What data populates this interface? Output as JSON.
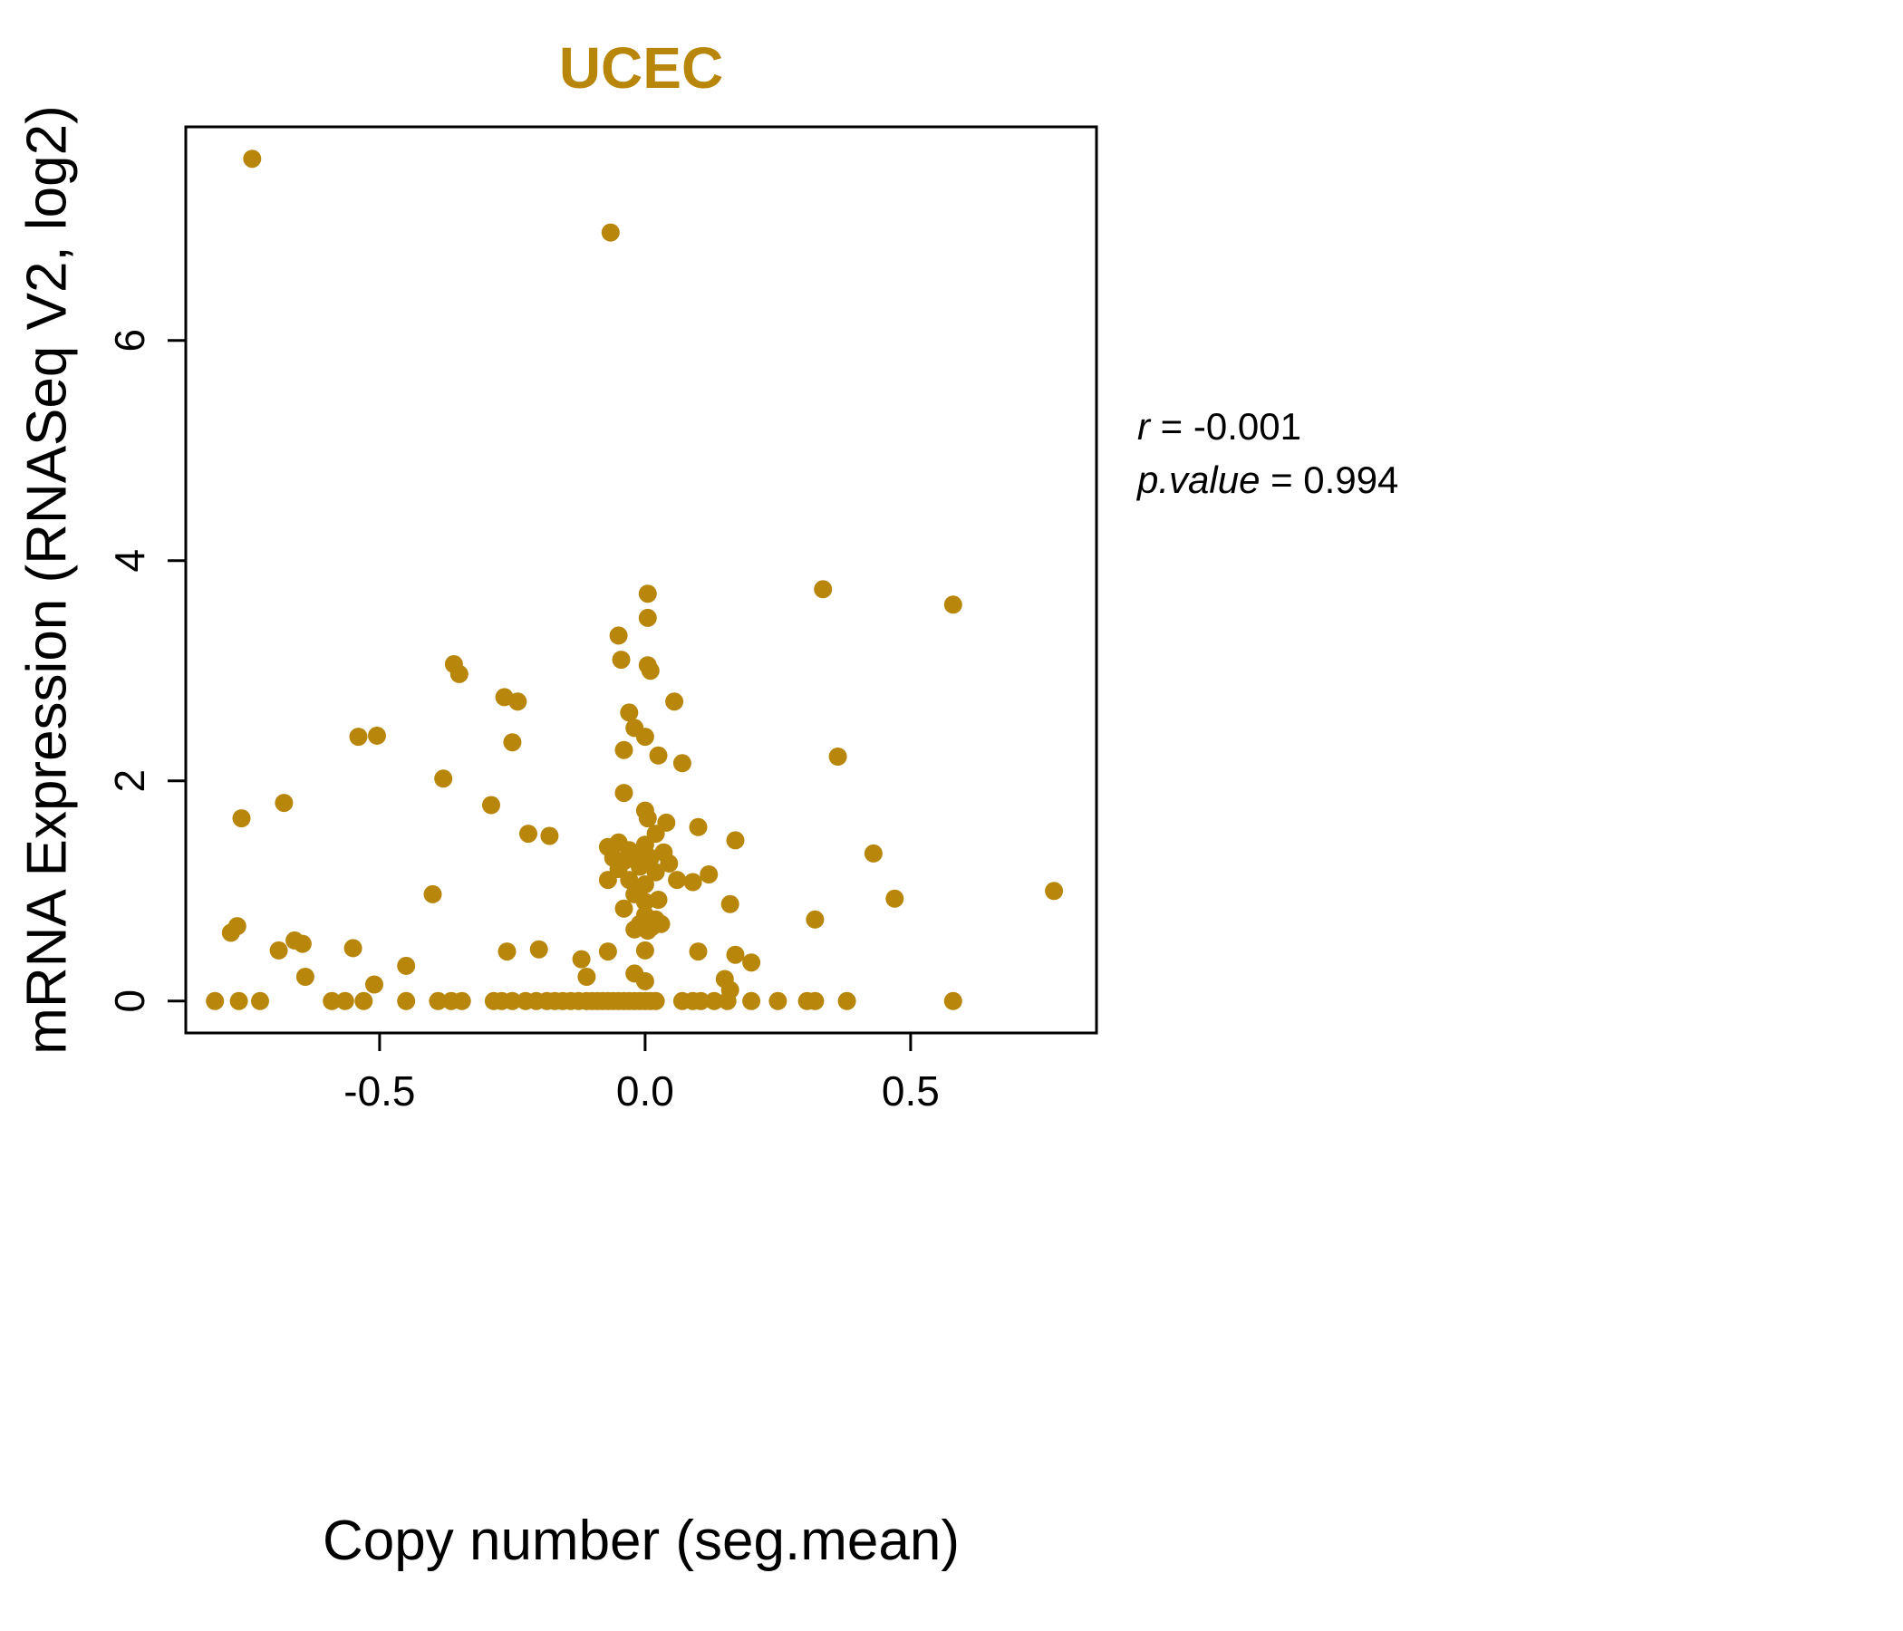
{
  "title": "UCEC",
  "colors": {
    "accent": "#B8860B",
    "text": "#000000",
    "background": "#ffffff"
  },
  "annotation": {
    "r_label": "r",
    "r_rest": " = -0.001",
    "p_label": "p.value",
    "p_rest": " = 0.994"
  },
  "chart_data": {
    "type": "scatter",
    "title": "UCEC",
    "xlabel": "Copy number (seg.mean)",
    "ylabel": "mRNA Expression (RNASeq V2, log2)",
    "xlim": [
      -0.865,
      0.85
    ],
    "ylim": [
      -0.29,
      7.94
    ],
    "xticks": [
      -0.5,
      0.0,
      0.5
    ],
    "xtick_labels": [
      "-0.5",
      "0.0",
      "0.5"
    ],
    "yticks": [
      0,
      2,
      4,
      6
    ],
    "ytick_labels": [
      "0",
      "2",
      "4",
      "6"
    ],
    "grid": false,
    "legend": "none",
    "point_color": "#B8860B",
    "correlation_r": -0.001,
    "p_value": 0.994,
    "points": [
      [
        -0.74,
        7.65
      ],
      [
        -0.065,
        6.98
      ],
      [
        0.005,
        3.7
      ],
      [
        0.335,
        3.74
      ],
      [
        0.58,
        3.6
      ],
      [
        0.005,
        3.48
      ],
      [
        -0.05,
        3.32
      ],
      [
        -0.045,
        3.1
      ],
      [
        0.005,
        3.05
      ],
      [
        0.01,
        3.0
      ],
      [
        -0.36,
        3.06
      ],
      [
        -0.35,
        2.97
      ],
      [
        -0.265,
        2.76
      ],
      [
        -0.24,
        2.72
      ],
      [
        0.055,
        2.72
      ],
      [
        -0.03,
        2.62
      ],
      [
        -0.02,
        2.48
      ],
      [
        0.0,
        2.4
      ],
      [
        -0.54,
        2.4
      ],
      [
        -0.505,
        2.41
      ],
      [
        -0.25,
        2.35
      ],
      [
        -0.04,
        2.28
      ],
      [
        0.025,
        2.23
      ],
      [
        0.363,
        2.22
      ],
      [
        0.07,
        2.16
      ],
      [
        -0.38,
        2.02
      ],
      [
        -0.04,
        1.89
      ],
      [
        -0.68,
        1.8
      ],
      [
        -0.29,
        1.78
      ],
      [
        0.0,
        1.73
      ],
      [
        0.005,
        1.66
      ],
      [
        -0.76,
        1.66
      ],
      [
        0.04,
        1.62
      ],
      [
        0.1,
        1.58
      ],
      [
        -0.22,
        1.52
      ],
      [
        -0.18,
        1.5
      ],
      [
        0.17,
        1.46
      ],
      [
        0.02,
        1.52
      ],
      [
        -0.07,
        1.4
      ],
      [
        -0.05,
        1.44
      ],
      [
        -0.03,
        1.37
      ],
      [
        0.0,
        1.42
      ],
      [
        -0.06,
        1.3
      ],
      [
        -0.04,
        1.27
      ],
      [
        -0.02,
        1.34
      ],
      [
        0.01,
        1.3
      ],
      [
        0.035,
        1.35
      ],
      [
        -0.05,
        1.2
      ],
      [
        -0.01,
        1.22
      ],
      [
        0.02,
        1.17
      ],
      [
        0.045,
        1.25
      ],
      [
        -0.07,
        1.1
      ],
      [
        -0.03,
        1.1
      ],
      [
        0.0,
        1.06
      ],
      [
        0.06,
        1.1
      ],
      [
        0.09,
        1.08
      ],
      [
        0.43,
        1.34
      ],
      [
        0.12,
        1.15
      ],
      [
        -0.02,
        0.97
      ],
      [
        0.0,
        0.9
      ],
      [
        0.025,
        0.92
      ],
      [
        -0.4,
        0.97
      ],
      [
        0.77,
        1.0
      ],
      [
        0.47,
        0.93
      ],
      [
        0.16,
        0.88
      ],
      [
        -0.04,
        0.84
      ],
      [
        0.0,
        0.78
      ],
      [
        0.02,
        0.74
      ],
      [
        0.32,
        0.74
      ],
      [
        -0.01,
        0.7
      ],
      [
        0.012,
        0.67
      ],
      [
        0.03,
        0.7
      ],
      [
        0.005,
        0.64
      ],
      [
        -0.02,
        0.65
      ],
      [
        -0.768,
        0.68
      ],
      [
        -0.78,
        0.62
      ],
      [
        -0.66,
        0.55
      ],
      [
        -0.645,
        0.52
      ],
      [
        -0.69,
        0.46
      ],
      [
        -0.55,
        0.48
      ],
      [
        -0.26,
        0.45
      ],
      [
        -0.2,
        0.47
      ],
      [
        -0.12,
        0.38
      ],
      [
        -0.07,
        0.45
      ],
      [
        0.0,
        0.46
      ],
      [
        0.1,
        0.45
      ],
      [
        0.17,
        0.42
      ],
      [
        0.2,
        0.35
      ],
      [
        -0.45,
        0.32
      ],
      [
        -0.64,
        0.22
      ],
      [
        -0.51,
        0.15
      ],
      [
        -0.02,
        0.25
      ],
      [
        -0.11,
        0.22
      ],
      [
        0.0,
        0.18
      ],
      [
        0.15,
        0.2
      ],
      [
        0.16,
        0.1
      ],
      [
        -0.81,
        0
      ],
      [
        -0.765,
        0
      ],
      [
        -0.725,
        0
      ],
      [
        -0.59,
        0
      ],
      [
        -0.565,
        0
      ],
      [
        -0.53,
        0
      ],
      [
        -0.45,
        0
      ],
      [
        -0.39,
        0
      ],
      [
        -0.365,
        0
      ],
      [
        -0.345,
        0
      ],
      [
        -0.285,
        0
      ],
      [
        -0.27,
        0
      ],
      [
        -0.25,
        0
      ],
      [
        -0.225,
        0
      ],
      [
        -0.205,
        0
      ],
      [
        -0.185,
        0
      ],
      [
        -0.17,
        0
      ],
      [
        -0.155,
        0
      ],
      [
        -0.14,
        0
      ],
      [
        -0.125,
        0
      ],
      [
        -0.11,
        0
      ],
      [
        -0.1,
        0
      ],
      [
        -0.09,
        0
      ],
      [
        -0.08,
        0
      ],
      [
        -0.07,
        0
      ],
      [
        -0.06,
        0
      ],
      [
        -0.05,
        0
      ],
      [
        -0.04,
        0
      ],
      [
        -0.03,
        0
      ],
      [
        -0.02,
        0
      ],
      [
        -0.01,
        0
      ],
      [
        0.0,
        0
      ],
      [
        0.01,
        0
      ],
      [
        0.02,
        0
      ],
      [
        0.07,
        0
      ],
      [
        0.09,
        0
      ],
      [
        0.105,
        0
      ],
      [
        0.13,
        0
      ],
      [
        0.155,
        0
      ],
      [
        0.2,
        0
      ],
      [
        0.25,
        0
      ],
      [
        0.305,
        0
      ],
      [
        0.32,
        0
      ],
      [
        0.38,
        0
      ],
      [
        0.58,
        0
      ]
    ]
  }
}
